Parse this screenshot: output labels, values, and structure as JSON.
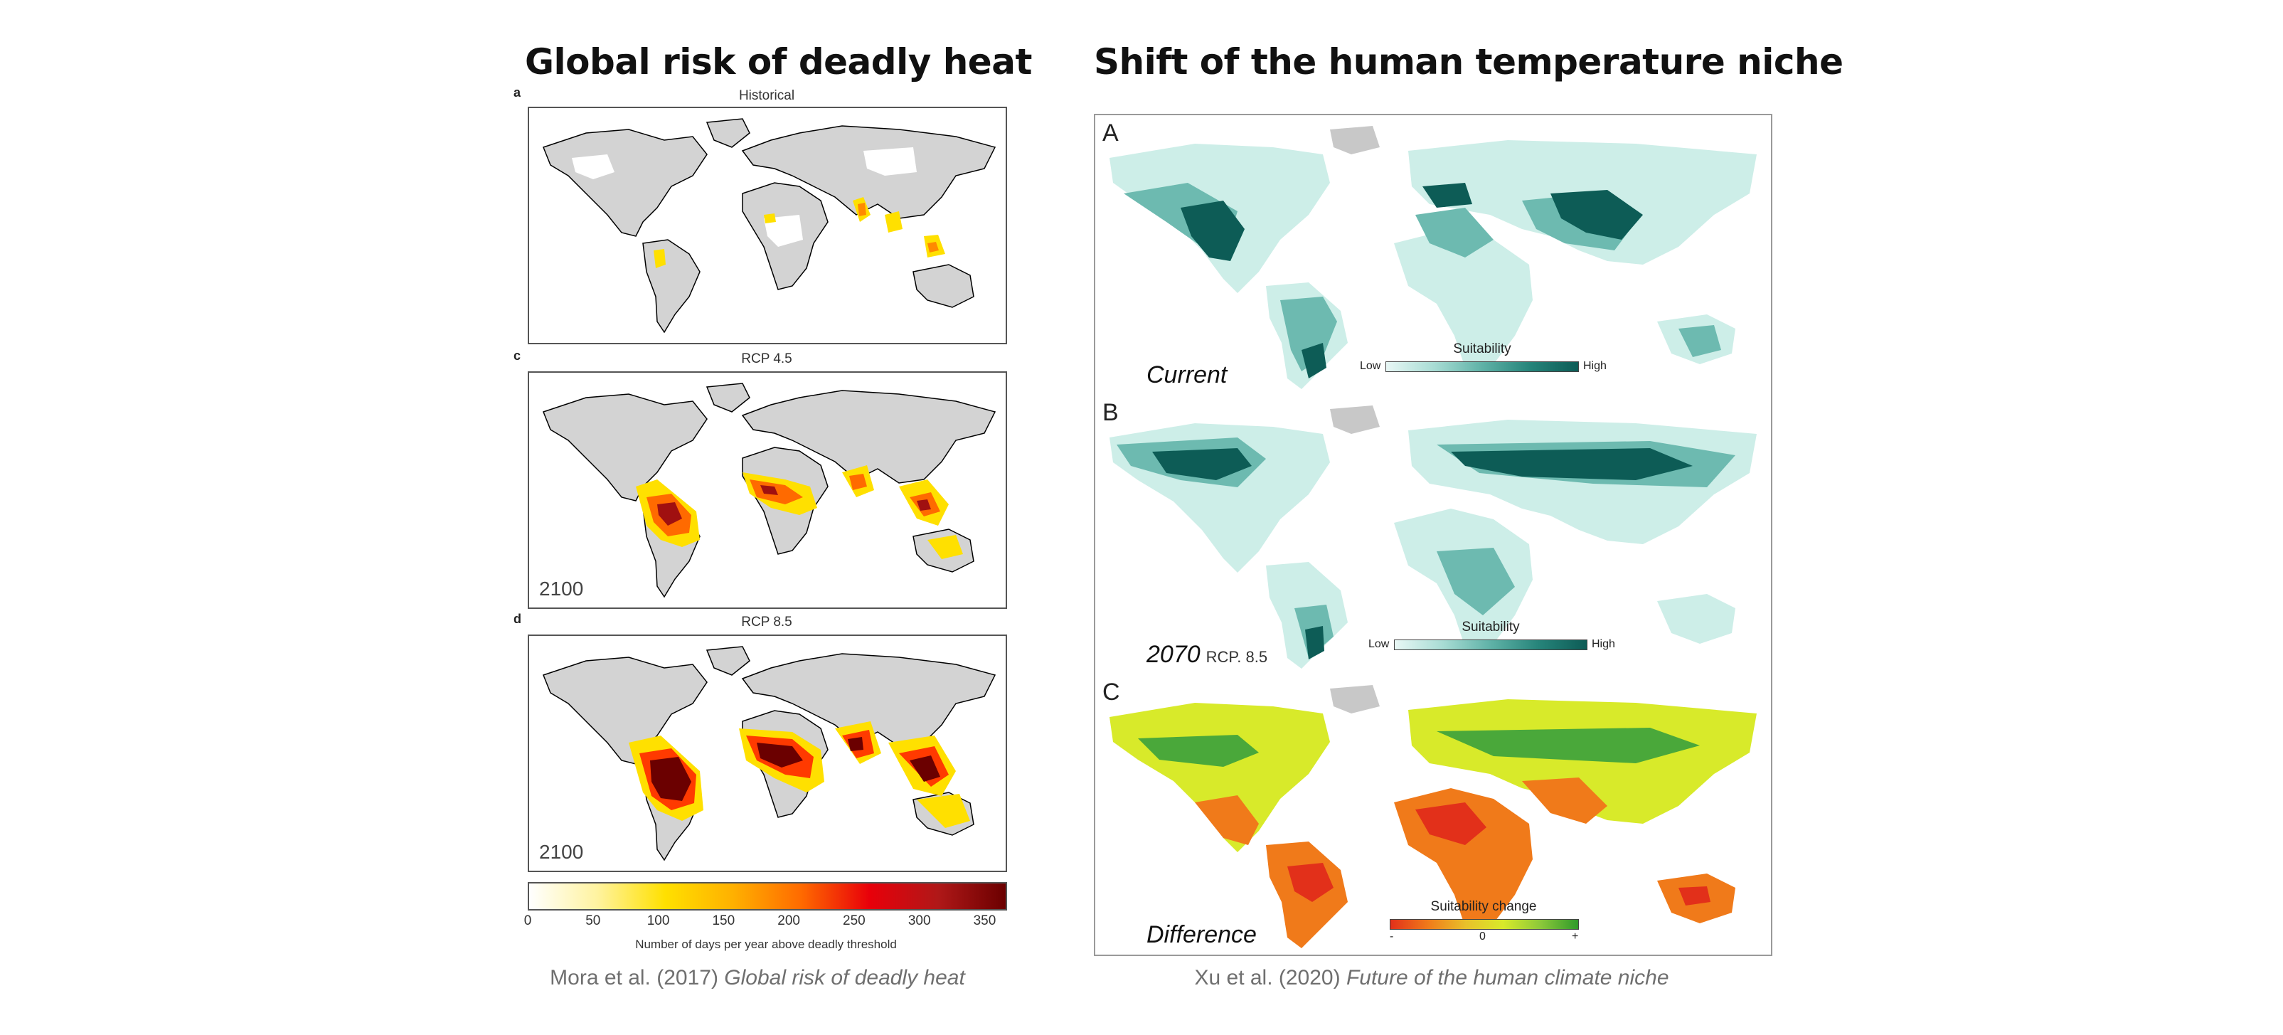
{
  "left": {
    "title": "Global risk of deadly heat",
    "panels": [
      {
        "letter": "a",
        "subtitle": "Historical",
        "year": ""
      },
      {
        "letter": "c",
        "subtitle": "RCP 4.5",
        "year": "2100"
      },
      {
        "letter": "d",
        "subtitle": "RCP 8.5",
        "year": "2100"
      }
    ],
    "colorbar": {
      "ticks": [
        "0",
        "50",
        "100",
        "150",
        "200",
        "250",
        "300",
        "350"
      ],
      "axis_label": "Number of days per year above deadly threshold",
      "colors": [
        "#ffffff",
        "#fff3a0",
        "#ffe000",
        "#ffb000",
        "#ff6a00",
        "#e8000a",
        "#b01818",
        "#6b0000"
      ]
    },
    "caption_authors": "Mora et al. (2017)",
    "caption_title": "Global risk of deadly heat"
  },
  "right": {
    "title": "Shift of the human temperature niche",
    "panels": [
      {
        "letter": "A",
        "label": "Current",
        "sublabel": "",
        "legend_title": "Suitability",
        "legend_low": "Low",
        "legend_high": "High"
      },
      {
        "letter": "B",
        "label": "2070",
        "sublabel": "RCP. 8.5",
        "legend_title": "Suitability",
        "legend_low": "Low",
        "legend_high": "High"
      },
      {
        "letter": "C",
        "label": "Difference",
        "sublabel": "",
        "legend_title": "Suitability change",
        "legend_low": "-",
        "legend_mid": "0",
        "legend_high": "+"
      }
    ],
    "caption_authors": "Xu et al. (2020)",
    "caption_title": "Future of the human climate niche"
  },
  "colors": {
    "land_grey": "#d3d3d3",
    "ocean_teal": "#d8f2ee",
    "teal_dark": "#0d5c56",
    "diff_yellow": "#d8ea2a",
    "diff_green": "#4aa83a",
    "diff_orange": "#f07a1a"
  }
}
